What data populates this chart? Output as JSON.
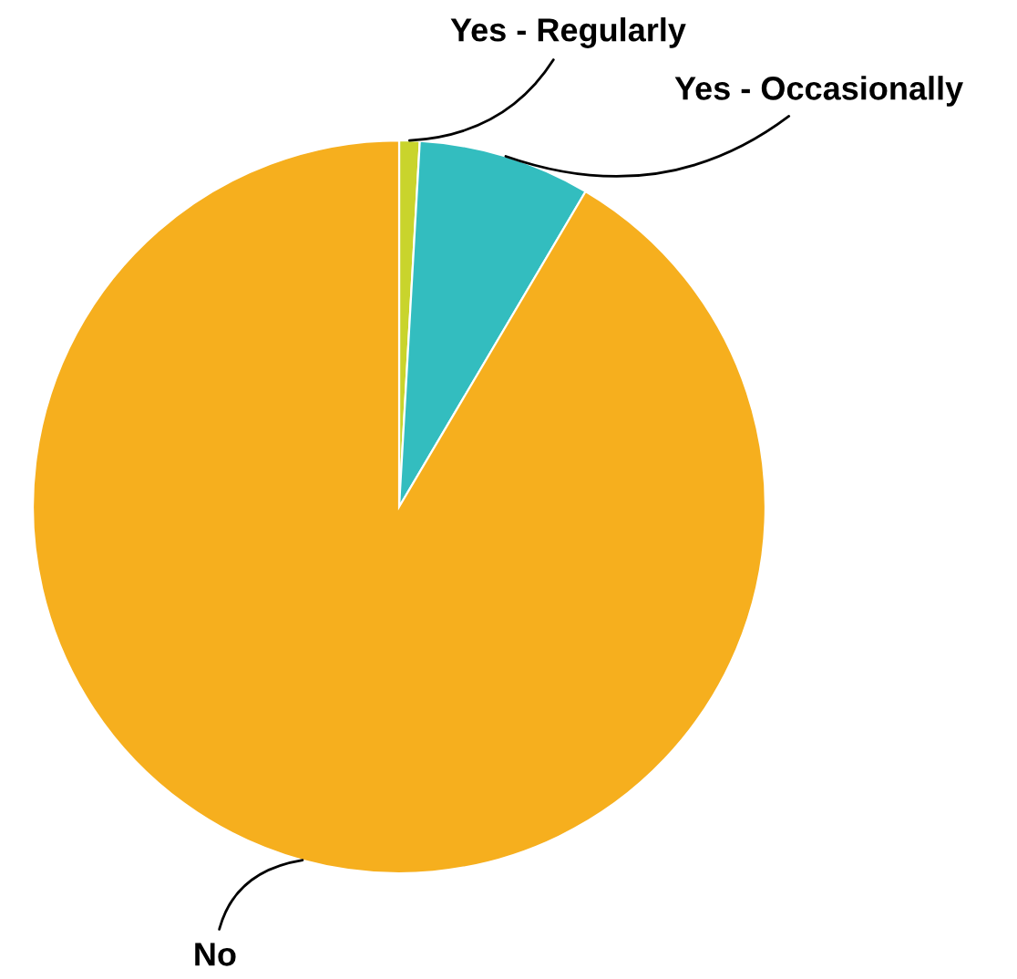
{
  "chart_data": {
    "type": "pie",
    "categories": [
      "Yes - Regularly",
      "Yes - Occasionally",
      "No"
    ],
    "values": [
      0.9,
      7.6,
      91.5
    ],
    "colors": [
      "#c9d42c",
      "#33bdbf",
      "#f6af1e"
    ]
  }
}
